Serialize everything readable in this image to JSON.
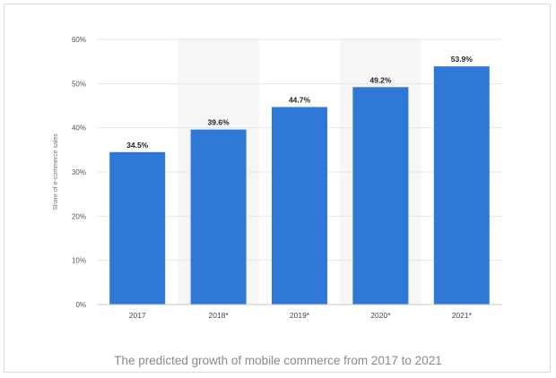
{
  "chart_data": {
    "type": "bar",
    "categories": [
      "2017",
      "2018*",
      "2019*",
      "2020*",
      "2021*"
    ],
    "values": [
      34.5,
      39.6,
      44.7,
      49.2,
      53.9
    ],
    "value_labels": [
      "34.5%",
      "39.6%",
      "44.7%",
      "49.2%",
      "53.9%"
    ],
    "ylabel": "Share of e-commerce sales",
    "xlabel": "",
    "ylim": [
      0,
      60
    ],
    "yticks": [
      0,
      10,
      20,
      30,
      40,
      50,
      60
    ],
    "ytick_labels": [
      "0%",
      "10%",
      "20%",
      "30%",
      "40%",
      "50%",
      "60%"
    ],
    "grid": true,
    "bar_color": "#2f78d8",
    "shaded_band_color": "#f6f6f6",
    "shaded_categories": [
      "2018*",
      "2020*"
    ]
  },
  "caption": "The predicted growth of mobile commerce from 2017 to 2021"
}
